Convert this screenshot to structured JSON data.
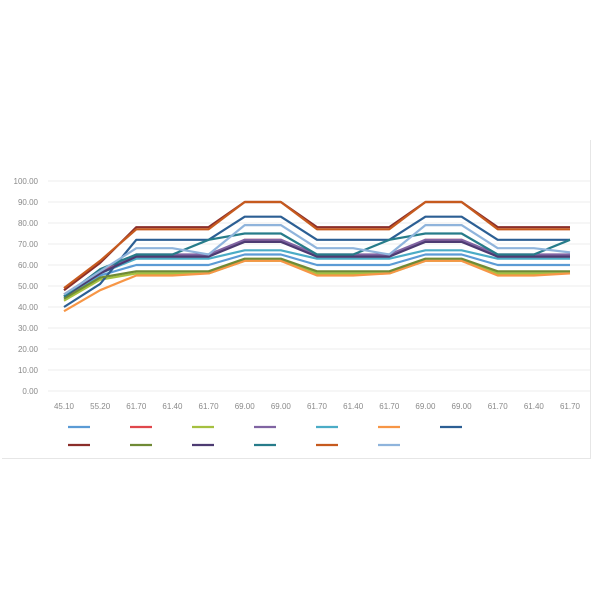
{
  "chart_data": {
    "type": "line",
    "title": "",
    "xlabel": "",
    "ylabel": "",
    "categories": [
      "45.10",
      "55.20",
      "61.70",
      "61.40",
      "61.70",
      "69.00",
      "69.00",
      "61.70",
      "61.40",
      "61.70",
      "69.00",
      "69.00",
      "61.70",
      "61.40",
      "61.70"
    ],
    "ylim": [
      0,
      100
    ],
    "yticks": [
      "0.00",
      "10.00",
      "20.00",
      "30.00",
      "40.00",
      "50.00",
      "60.00",
      "70.00",
      "80.00",
      "90.00",
      "100.00"
    ],
    "grid": true,
    "legend": "bottom",
    "series": [
      {
        "name": "",
        "color": "#5b9bd5",
        "values": [
          45,
          55,
          60,
          60,
          60,
          65,
          65,
          60,
          60,
          60,
          65,
          65,
          60,
          60,
          60
        ]
      },
      {
        "name": "",
        "color": "#e0474c",
        "values": [
          46,
          57,
          64,
          64,
          64,
          72,
          72,
          64,
          64,
          64,
          72,
          72,
          64,
          64,
          64
        ]
      },
      {
        "name": "",
        "color": "#a5c040",
        "values": [
          43,
          53,
          56,
          56,
          56,
          62,
          62,
          56,
          56,
          56,
          62,
          62,
          56,
          56,
          56
        ]
      },
      {
        "name": "",
        "color": "#8064a2",
        "values": [
          45,
          56,
          65,
          65,
          65,
          72,
          72,
          65,
          65,
          65,
          72,
          72,
          65,
          65,
          65
        ]
      },
      {
        "name": "",
        "color": "#4bacc6",
        "values": [
          44,
          56,
          63,
          63,
          63,
          67,
          67,
          63,
          63,
          63,
          67,
          67,
          63,
          63,
          63
        ]
      },
      {
        "name": "",
        "color": "#f79646",
        "values": [
          38,
          48,
          55,
          55,
          56,
          62,
          62,
          55,
          55,
          56,
          62,
          62,
          55,
          55,
          56
        ]
      },
      {
        "name": "",
        "color": "#2c5f94",
        "values": [
          40,
          51,
          72,
          72,
          72,
          83,
          83,
          72,
          72,
          72,
          83,
          83,
          72,
          72,
          72
        ]
      },
      {
        "name": "",
        "color": "#8b2e2a",
        "values": [
          48,
          61,
          78,
          78,
          78,
          90,
          90,
          78,
          78,
          78,
          90,
          90,
          78,
          78,
          78
        ]
      },
      {
        "name": "",
        "color": "#6f8a35",
        "values": [
          44,
          54,
          57,
          57,
          57,
          63,
          63,
          57,
          57,
          57,
          63,
          63,
          57,
          57,
          57
        ]
      },
      {
        "name": "",
        "color": "#4d3b72",
        "values": [
          45,
          56,
          64,
          64,
          64,
          71,
          71,
          64,
          64,
          64,
          71,
          71,
          64,
          64,
          64
        ]
      },
      {
        "name": "",
        "color": "#277c8a",
        "values": [
          45,
          58,
          65,
          65,
          72,
          75,
          75,
          65,
          65,
          72,
          75,
          75,
          65,
          65,
          72
        ]
      },
      {
        "name": "",
        "color": "#c65a1e",
        "values": [
          49,
          62,
          77,
          77,
          77,
          90,
          90,
          77,
          77,
          77,
          90,
          90,
          77,
          77,
          77
        ]
      },
      {
        "name": "",
        "color": "#8fb4dc",
        "values": [
          46,
          57,
          68,
          68,
          65,
          79,
          79,
          68,
          68,
          65,
          79,
          79,
          68,
          68,
          66
        ]
      }
    ]
  }
}
